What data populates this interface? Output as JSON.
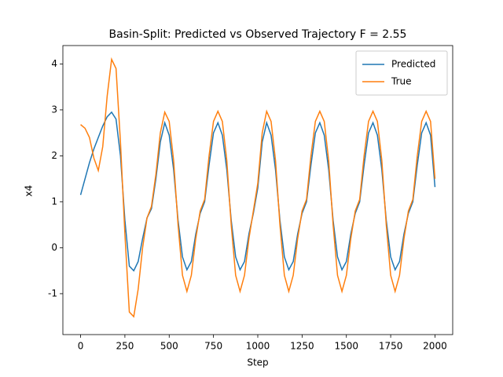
{
  "chart_data": {
    "type": "line",
    "title": "Basin-Split: Predicted vs Observed Trajectory F = 2.55",
    "xlabel": "Step",
    "ylabel": "x4",
    "x": [
      0,
      25,
      50,
      75,
      100,
      125,
      150,
      175,
      200,
      225,
      250,
      275,
      300,
      325,
      350,
      375,
      400,
      425,
      450,
      475,
      500,
      525,
      550,
      575,
      600,
      625,
      650,
      675,
      700,
      725,
      750,
      775,
      800,
      825,
      850,
      875,
      900,
      925,
      950,
      975,
      1000,
      1025,
      1050,
      1075,
      1100,
      1125,
      1150,
      1175,
      1200,
      1225,
      1250,
      1275,
      1300,
      1325,
      1350,
      1375,
      1400,
      1425,
      1450,
      1475,
      1500,
      1525,
      1550,
      1575,
      1600,
      1625,
      1650,
      1675,
      1700,
      1725,
      1750,
      1775,
      1800,
      1825,
      1850,
      1875,
      1900,
      1925,
      1950,
      1975,
      2000
    ],
    "series": [
      {
        "name": "Predicted",
        "color": "#1f77b4",
        "values": [
          1.15,
          1.5,
          1.85,
          2.15,
          2.4,
          2.65,
          2.85,
          2.95,
          2.8,
          2.0,
          0.6,
          -0.4,
          -0.5,
          -0.3,
          0.2,
          0.65,
          0.85,
          1.5,
          2.3,
          2.72,
          2.45,
          1.7,
          0.6,
          -0.2,
          -0.48,
          -0.3,
          0.3,
          0.75,
          1.0,
          1.8,
          2.5,
          2.72,
          2.45,
          1.7,
          0.6,
          -0.2,
          -0.48,
          -0.3,
          0.3,
          0.75,
          1.3,
          2.3,
          2.72,
          2.45,
          1.7,
          0.6,
          -0.2,
          -0.48,
          -0.3,
          0.3,
          0.75,
          1.0,
          1.8,
          2.5,
          2.72,
          2.45,
          1.7,
          0.6,
          -0.2,
          -0.48,
          -0.3,
          0.3,
          0.75,
          1.0,
          1.8,
          2.5,
          2.72,
          2.45,
          1.7,
          0.6,
          -0.2,
          -0.48,
          -0.3,
          0.3,
          0.75,
          1.0,
          1.8,
          2.5,
          2.72,
          2.45,
          1.32
        ]
      },
      {
        "name": "True",
        "color": "#ff7f0e",
        "values": [
          2.68,
          2.6,
          2.4,
          1.95,
          1.68,
          2.2,
          3.3,
          4.1,
          3.9,
          2.3,
          0.3,
          -1.4,
          -1.5,
          -0.9,
          0.0,
          0.65,
          0.9,
          1.6,
          2.5,
          2.95,
          2.75,
          1.9,
          0.5,
          -0.6,
          -0.95,
          -0.6,
          0.2,
          0.8,
          1.05,
          2.0,
          2.75,
          2.97,
          2.75,
          1.9,
          0.5,
          -0.6,
          -0.95,
          -0.6,
          0.2,
          0.8,
          1.4,
          2.5,
          2.97,
          2.75,
          1.9,
          0.5,
          -0.6,
          -0.95,
          -0.6,
          0.2,
          0.8,
          1.05,
          2.0,
          2.75,
          2.97,
          2.75,
          1.9,
          0.5,
          -0.6,
          -0.95,
          -0.6,
          0.2,
          0.8,
          1.05,
          2.0,
          2.75,
          2.97,
          2.75,
          1.9,
          0.5,
          -0.6,
          -0.95,
          -0.6,
          0.2,
          0.8,
          1.05,
          2.0,
          2.75,
          2.97,
          2.75,
          1.5
        ]
      }
    ],
    "xlim": [
      -100,
      2100
    ],
    "ylim": [
      -1.89,
      4.4
    ],
    "xticks": [
      0,
      250,
      500,
      750,
      1000,
      1250,
      1500,
      1750,
      2000
    ],
    "yticks": [
      -1,
      0,
      1,
      2,
      3,
      4
    ],
    "grid": false,
    "legend": "upper right"
  }
}
